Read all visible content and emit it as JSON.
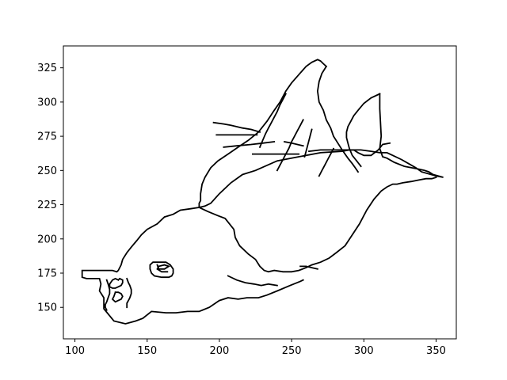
{
  "chart_data": {
    "type": "line",
    "title": "",
    "xlabel": "",
    "ylabel": "",
    "xlim": [
      92,
      364
    ],
    "ylim": [
      127,
      341
    ],
    "xticks": [
      100,
      150,
      200,
      250,
      300,
      350
    ],
    "yticks": [
      150,
      175,
      200,
      225,
      250,
      275,
      300,
      325
    ],
    "xtick_labels": [
      "100",
      "150",
      "200",
      "250",
      "300",
      "350"
    ],
    "ytick_labels": [
      "150",
      "175",
      "200",
      "225",
      "250",
      "275",
      "300",
      "325"
    ],
    "grid": false,
    "legend": "none",
    "line_color": "#000000",
    "series": [
      {
        "x": [
          186,
          180,
          173,
          168,
          162,
          157,
          150,
          146,
          143,
          139,
          136,
          133,
          132,
          130,
          129,
          126,
          118,
          111,
          105,
          105,
          108,
          117,
          118,
          117,
          120,
          120,
          127,
          135,
          142,
          147,
          153,
          163,
          170,
          178,
          186,
          193,
          200,
          206,
          213,
          219,
          227,
          233,
          240,
          249,
          256,
          258
        ],
        "y": [
          223,
          222,
          221,
          218,
          216,
          211,
          207,
          203,
          199,
          194,
          190,
          185,
          181,
          177,
          176,
          177,
          177,
          177,
          177,
          172,
          171,
          171,
          167,
          162,
          157,
          149,
          140,
          138,
          140,
          142,
          147,
          146,
          146,
          147,
          147,
          150,
          155,
          157,
          156,
          157,
          157,
          159,
          162,
          166,
          169,
          170
        ]
      },
      {
        "x": [
          186,
          190,
          194,
          200,
          208,
          216,
          225,
          240,
          255,
          270,
          285,
          290,
          293,
          296,
          300,
          305,
          310,
          313,
          318
        ],
        "y": [
          223,
          224,
          226,
          233,
          241,
          247,
          250,
          257,
          260,
          263,
          264,
          265,
          265,
          263,
          261,
          261,
          265,
          269,
          270
        ]
      },
      {
        "x": [
          186,
          192,
          199,
          204,
          210,
          211,
          214,
          220,
          225,
          228,
          231,
          234,
          238,
          244,
          250,
          255,
          260,
          264,
          270,
          276,
          281,
          287,
          292,
          297,
          302,
          307,
          312,
          316,
          320,
          323,
          327,
          333,
          338,
          343,
          347,
          350
        ],
        "y": [
          223,
          220,
          217,
          215,
          207,
          201,
          195,
          189,
          185,
          180,
          177,
          176,
          177,
          176,
          176,
          177,
          179,
          181,
          183,
          186,
          190,
          195,
          203,
          211,
          221,
          229,
          235,
          238,
          240,
          240,
          241,
          242,
          243,
          244,
          244,
          245
        ]
      },
      {
        "x": [
          262,
          270,
          275,
          280,
          286,
          292,
          298,
          305,
          311,
          316,
          320,
          326,
          331,
          336,
          340,
          350,
          355,
          348,
          345,
          342,
          338,
          333,
          328,
          321,
          316,
          313,
          311,
          312,
          311,
          311
        ],
        "y": [
          264,
          265,
          265,
          265,
          265,
          265,
          265,
          264,
          263,
          263,
          261,
          258,
          255,
          252,
          249,
          246,
          245,
          247,
          249,
          250,
          251,
          252,
          253,
          256,
          259,
          260,
          266,
          275,
          295,
          306
        ]
      },
      {
        "x": [
          311,
          305,
          300,
          296,
          293,
          291,
          289,
          288,
          288,
          289,
          290,
          292,
          295,
          298
        ],
        "y": [
          306,
          303,
          299,
          294,
          290,
          286,
          282,
          278,
          274,
          270,
          266,
          261,
          257,
          253
        ]
      },
      {
        "x": [
          186,
          186,
          187,
          187,
          188,
          190,
          194,
          199,
          206,
          213,
          220,
          227,
          233,
          238,
          242,
          246,
          250,
          255,
          260,
          264,
          268,
          270,
          272,
          274
        ],
        "y": [
          223,
          226,
          228,
          233,
          240,
          245,
          252,
          257,
          262,
          267,
          272,
          278,
          286,
          294,
          300,
          308,
          314,
          320,
          326,
          329,
          331,
          330,
          328,
          326
        ]
      },
      {
        "x": [
          274,
          271,
          269,
          268,
          269,
          272,
          274,
          277,
          279,
          282,
          285,
          289,
          292,
          294,
          296
        ],
        "y": [
          326,
          321,
          315,
          308,
          300,
          294,
          287,
          281,
          275,
          270,
          265,
          259,
          255,
          252,
          249
        ]
      },
      {
        "x": [
          246,
          244,
          242,
          240,
          238,
          236,
          234,
          232,
          230,
          228
        ],
        "y": [
          306,
          302,
          298,
          293,
          289,
          285,
          281,
          277,
          272,
          267
        ]
      },
      {
        "x": [
          258,
          256,
          254,
          252,
          250,
          248,
          246,
          244,
          242,
          240
        ],
        "y": [
          287,
          283,
          279,
          275,
          271,
          266,
          262,
          258,
          254,
          250
        ]
      },
      {
        "x": [
          264,
          263,
          262,
          261,
          260,
          259
        ],
        "y": [
          280,
          276,
          272,
          268,
          264,
          260
        ]
      },
      {
        "x": [
          279,
          277,
          275,
          273,
          271,
          269
        ],
        "y": [
          266,
          262,
          258,
          254,
          250,
          246
        ]
      },
      {
        "x": [
          160,
          163,
          166,
          168,
          168,
          167,
          165,
          160,
          155,
          153,
          152,
          152,
          154,
          157,
          160
        ],
        "y": [
          183,
          183,
          181,
          178,
          175,
          173,
          172,
          172,
          173,
          175,
          178,
          181,
          183,
          183,
          183
        ]
      },
      {
        "x": [
          157,
          158,
          162,
          165,
          162,
          158,
          157,
          160,
          164
        ],
        "y": [
          181,
          178,
          178,
          180,
          181,
          180,
          178,
          176,
          176
        ]
      },
      {
        "x": [
          130,
          128,
          126,
          124,
          124,
          126,
          128,
          130,
          132,
          133,
          133,
          131,
          130
        ],
        "y": [
          170,
          171,
          170,
          167,
          165,
          164,
          164,
          165,
          166,
          168,
          170,
          171,
          170
        ]
      },
      {
        "x": [
          128,
          127,
          126,
          127,
          128,
          130,
          132,
          133,
          132,
          130,
          128
        ],
        "y": [
          161,
          158,
          156,
          155,
          154,
          155,
          156,
          158,
          160,
          161,
          161
        ]
      },
      {
        "x": [
          136,
          137,
          138,
          139,
          139,
          138,
          137,
          136,
          136
        ],
        "y": [
          171,
          168,
          166,
          163,
          160,
          157,
          155,
          153,
          150
        ]
      },
      {
        "x": [
          122,
          123,
          124,
          124,
          123,
          122,
          121,
          121,
          122
        ],
        "y": [
          170,
          167,
          163,
          160,
          157,
          154,
          152,
          150,
          148
        ]
      },
      {
        "x": [
          196,
          203,
          208,
          212,
          216,
          222,
          228
        ],
        "y": [
          285,
          284,
          283,
          282,
          281,
          280,
          278
        ]
      },
      {
        "x": [
          198,
          205,
          212,
          220,
          226
        ],
        "y": [
          276,
          276,
          276,
          276,
          276
        ]
      },
      {
        "x": [
          203,
          212,
          222,
          230,
          238
        ],
        "y": [
          267,
          268,
          269,
          270,
          271
        ]
      },
      {
        "x": [
          223,
          232,
          240,
          248,
          255
        ],
        "y": [
          262,
          262,
          262,
          262,
          262
        ]
      },
      {
        "x": [
          245,
          250,
          254,
          258
        ],
        "y": [
          271,
          270,
          269,
          268
        ]
      },
      {
        "x": [
          256,
          260,
          264,
          268
        ],
        "y": [
          180,
          180,
          179,
          178
        ]
      },
      {
        "x": [
          206,
          212,
          218,
          224,
          229,
          234,
          240
        ],
        "y": [
          173,
          170,
          168,
          167,
          166,
          167,
          166
        ]
      }
    ]
  }
}
